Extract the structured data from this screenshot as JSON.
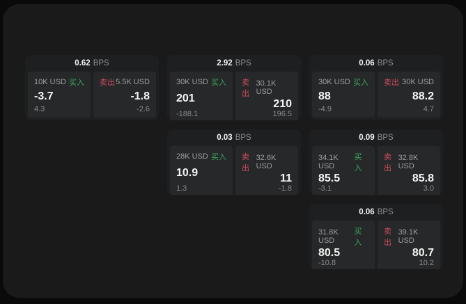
{
  "labels": {
    "bps": "BPS",
    "buy": "买入",
    "sell": "卖出"
  },
  "colors": {
    "buy_green": "#3aa85f",
    "sell_red": "#cc4b5f",
    "value_white": "#f4f4f4",
    "muted_gray": "#8a8a8a",
    "card_bg": "#1e1f20",
    "tile_bg": "#272829",
    "panel_bg": "#1a1a1b",
    "outer_bg": "#0a0a0b"
  },
  "cards": [
    {
      "bps": "0.62",
      "buy": {
        "size": "10K USD",
        "value": "-3.7",
        "delta": "4.3"
      },
      "sell": {
        "size": "5.5K USD",
        "value": "-1.8",
        "delta": "-2.6"
      }
    },
    {
      "bps": "2.92",
      "buy": {
        "size": "30K USD",
        "value": "201",
        "delta": "-188.1"
      },
      "sell": {
        "size": "30.1K USD",
        "value": "210",
        "delta": "196.5"
      }
    },
    {
      "bps": "0.06",
      "buy": {
        "size": "30K USD",
        "value": "88",
        "delta": "-4.9"
      },
      "sell": {
        "size": "30K USD",
        "value": "88.2",
        "delta": "4.7"
      }
    },
    {
      "bps": "0.03",
      "buy": {
        "size": "28K USD",
        "value": "10.9",
        "delta": "1.3"
      },
      "sell": {
        "size": "32.6K USD",
        "value": "11",
        "delta": "-1.8"
      }
    },
    {
      "bps": "0.09",
      "buy": {
        "size": "34.1K USD",
        "value": "85.5",
        "delta": "-3.1"
      },
      "sell": {
        "size": "32.8K USD",
        "value": "85.8",
        "delta": "3.0"
      }
    },
    {
      "bps": "0.06",
      "buy": {
        "size": "31.8K USD",
        "value": "80.5",
        "delta": "-10.8"
      },
      "sell": {
        "size": "39.1K USD",
        "value": "80.7",
        "delta": "10.2"
      }
    }
  ]
}
